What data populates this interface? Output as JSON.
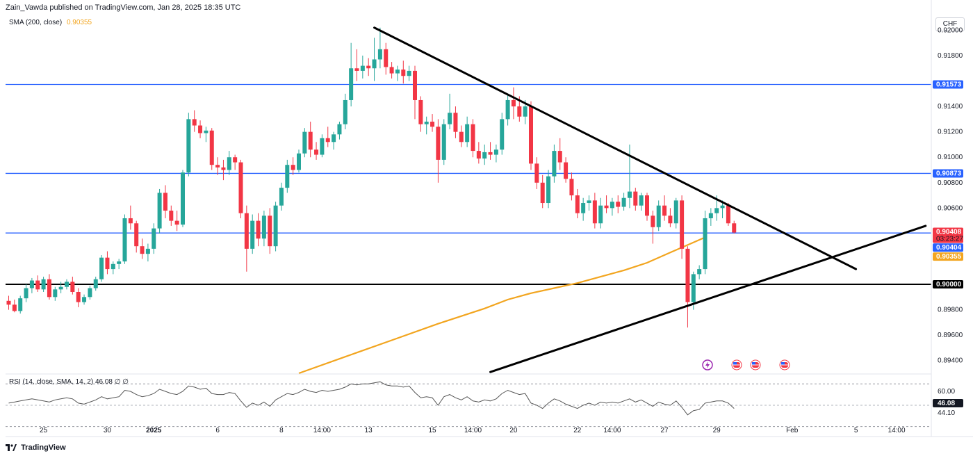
{
  "header": {
    "author": "Zain_Vawda",
    "published": "published on TradingView.com, Jan 28, 2025 18:35 UTC"
  },
  "legend": {
    "sma_label": "SMA (200, close)",
    "sma_value": "0.90355"
  },
  "rsi_legend": {
    "label": "RSI (14, close, SMA, 14, 2)",
    "value": "46.08",
    "extra": "∅  ∅"
  },
  "currency": "CHF",
  "footer": {
    "brand": "TradingView"
  },
  "colors": {
    "bull": "#26a69a",
    "bear": "#f23645",
    "sma": "#f2a51f",
    "hline": "#2962ff",
    "trend": "#000000",
    "rsi": "#555555"
  },
  "chart_data": {
    "type": "candlestick",
    "symbol_currency": "CHF",
    "ylim": [
      0.893,
      0.9215
    ],
    "y_ticks": [
      "0.92000",
      "0.91800",
      "0.91400",
      "0.91200",
      "0.91000",
      "0.90800",
      "0.90600",
      "0.89800",
      "0.89600",
      "0.89400"
    ],
    "x_ticks": [
      {
        "label": "25",
        "idx": 6
      },
      {
        "label": "30",
        "idx": 17
      },
      {
        "label": "2025",
        "idx": 25
      },
      {
        "label": "6",
        "idx": 36
      },
      {
        "label": "8",
        "idx": 47
      },
      {
        "label": "14:00",
        "idx": 54
      },
      {
        "label": "13",
        "idx": 62
      },
      {
        "label": "15",
        "idx": 73
      },
      {
        "label": "14:00",
        "idx": 80
      },
      {
        "label": "20",
        "idx": 87
      },
      {
        "label": "22",
        "idx": 98
      },
      {
        "label": "14:00",
        "idx": 104
      },
      {
        "label": "27",
        "idx": 113
      },
      {
        "label": "29",
        "idx": 122
      },
      {
        "label": "Feb",
        "idx": 135
      },
      {
        "label": "5",
        "idx": 146
      },
      {
        "label": "14:00",
        "idx": 153
      }
    ],
    "price_tags": [
      {
        "label": "0.91573",
        "value": 0.91573,
        "color": "#2962ff"
      },
      {
        "label": "0.90873",
        "value": 0.90873,
        "color": "#2962ff"
      },
      {
        "label": "0.90408",
        "sub": "03:23:27",
        "value": 0.90408,
        "color": "#f23645"
      },
      {
        "label": "0.90404",
        "value": 0.90404,
        "color": "#2962ff"
      },
      {
        "label": "0.90355",
        "value": 0.90355,
        "color": "#f2a51f"
      },
      {
        "label": "0.90000",
        "value": 0.9,
        "color": "#000000"
      }
    ],
    "horizontal_lines": [
      {
        "value": 0.91573,
        "color": "#2962ff"
      },
      {
        "value": 0.90873,
        "color": "#2962ff"
      },
      {
        "value": 0.90404,
        "color": "#2962ff"
      },
      {
        "value": 0.9,
        "color": "#000000"
      }
    ],
    "trendlines": [
      {
        "from": [
          63,
          0.9202
        ],
        "to": [
          146,
          0.9012
        ]
      },
      {
        "from": [
          83,
          0.8931
        ],
        "to": [
          158,
          0.9046
        ]
      }
    ],
    "sma200": [
      [
        50,
        0.893
      ],
      [
        58,
        0.8943
      ],
      [
        66,
        0.8956
      ],
      [
        74,
        0.8969
      ],
      [
        82,
        0.8981
      ],
      [
        86,
        0.8988
      ],
      [
        90,
        0.8993
      ],
      [
        94,
        0.8997
      ],
      [
        98,
        0.9001
      ],
      [
        102,
        0.9006
      ],
      [
        106,
        0.9011
      ],
      [
        110,
        0.9017
      ],
      [
        114,
        0.9025
      ],
      [
        118,
        0.9033
      ],
      [
        120,
        0.9037
      ]
    ],
    "candles": [
      [
        0.8987,
        0.8991,
        0.898,
        0.8984
      ],
      [
        0.8984,
        0.8988,
        0.8978,
        0.8979
      ],
      [
        0.8979,
        0.8991,
        0.8977,
        0.8989
      ],
      [
        0.8989,
        0.9,
        0.8986,
        0.8997
      ],
      [
        0.8997,
        0.9005,
        0.8993,
        0.9003
      ],
      [
        0.9003,
        0.9007,
        0.8994,
        0.8996
      ],
      [
        0.8996,
        0.9006,
        0.8994,
        0.9004
      ],
      [
        0.9004,
        0.9008,
        0.8988,
        0.899
      ],
      [
        0.899,
        0.8998,
        0.8987,
        0.8996
      ],
      [
        0.8996,
        0.9002,
        0.8993,
        0.8998
      ],
      [
        0.8998,
        0.9004,
        0.8996,
        0.9002
      ],
      [
        0.9002,
        0.9006,
        0.8992,
        0.8994
      ],
      [
        0.8994,
        0.8997,
        0.8982,
        0.8986
      ],
      [
        0.8986,
        0.8992,
        0.8984,
        0.899
      ],
      [
        0.899,
        0.8999,
        0.8988,
        0.8997
      ],
      [
        0.8997,
        0.9006,
        0.8995,
        0.9004
      ],
      [
        0.9004,
        0.9023,
        0.9002,
        0.9021
      ],
      [
        0.9021,
        0.9026,
        0.9008,
        0.9012
      ],
      [
        0.9012,
        0.9018,
        0.9008,
        0.9016
      ],
      [
        0.9016,
        0.902,
        0.9012,
        0.9018
      ],
      [
        0.9018,
        0.9055,
        0.9016,
        0.9052
      ],
      [
        0.9052,
        0.9062,
        0.9043,
        0.9048
      ],
      [
        0.9048,
        0.905,
        0.9025,
        0.903
      ],
      [
        0.903,
        0.9036,
        0.902,
        0.9024
      ],
      [
        0.9024,
        0.9032,
        0.9018,
        0.9028
      ],
      [
        0.9028,
        0.9048,
        0.9024,
        0.9044
      ],
      [
        0.9044,
        0.9075,
        0.904,
        0.9072
      ],
      [
        0.9072,
        0.9078,
        0.9052,
        0.9058
      ],
      [
        0.9058,
        0.9062,
        0.9046,
        0.905
      ],
      [
        0.905,
        0.9058,
        0.9042,
        0.9047
      ],
      [
        0.9047,
        0.909,
        0.9045,
        0.9088
      ],
      [
        0.9088,
        0.9135,
        0.9085,
        0.913
      ],
      [
        0.913,
        0.9137,
        0.912,
        0.9125
      ],
      [
        0.9125,
        0.9129,
        0.9115,
        0.9119
      ],
      [
        0.9119,
        0.9124,
        0.9112,
        0.9121
      ],
      [
        0.9121,
        0.9123,
        0.909,
        0.9094
      ],
      [
        0.9094,
        0.91,
        0.9086,
        0.9092
      ],
      [
        0.9092,
        0.9098,
        0.9082,
        0.909
      ],
      [
        0.909,
        0.9105,
        0.9086,
        0.91
      ],
      [
        0.91,
        0.9102,
        0.909,
        0.9096
      ],
      [
        0.9096,
        0.9098,
        0.9052,
        0.9056
      ],
      [
        0.9056,
        0.9062,
        0.901,
        0.9028
      ],
      [
        0.9028,
        0.9055,
        0.9024,
        0.905
      ],
      [
        0.905,
        0.9056,
        0.903,
        0.9036
      ],
      [
        0.9036,
        0.9058,
        0.903,
        0.9054
      ],
      [
        0.9054,
        0.906,
        0.9024,
        0.903
      ],
      [
        0.903,
        0.9065,
        0.9026,
        0.9062
      ],
      [
        0.9062,
        0.908,
        0.9058,
        0.9076
      ],
      [
        0.9076,
        0.9098,
        0.9072,
        0.9094
      ],
      [
        0.9094,
        0.91,
        0.9086,
        0.909
      ],
      [
        0.909,
        0.9106,
        0.9088,
        0.9103
      ],
      [
        0.9103,
        0.9123,
        0.91,
        0.912
      ],
      [
        0.912,
        0.9128,
        0.91,
        0.9106
      ],
      [
        0.9106,
        0.9112,
        0.9098,
        0.9102
      ],
      [
        0.9102,
        0.9118,
        0.91,
        0.9115
      ],
      [
        0.9115,
        0.9124,
        0.9108,
        0.9112
      ],
      [
        0.9112,
        0.912,
        0.9106,
        0.9118
      ],
      [
        0.9118,
        0.9128,
        0.9114,
        0.9126
      ],
      [
        0.9126,
        0.915,
        0.9122,
        0.9145
      ],
      [
        0.9145,
        0.919,
        0.914,
        0.917
      ],
      [
        0.917,
        0.9185,
        0.916,
        0.9168
      ],
      [
        0.9168,
        0.918,
        0.9162,
        0.9172
      ],
      [
        0.9172,
        0.9178,
        0.9164,
        0.917
      ],
      [
        0.917,
        0.9194,
        0.916,
        0.9177
      ],
      [
        0.9177,
        0.9202,
        0.917,
        0.9185
      ],
      [
        0.9185,
        0.919,
        0.9165,
        0.9171
      ],
      [
        0.9171,
        0.9175,
        0.9162,
        0.9166
      ],
      [
        0.9166,
        0.9172,
        0.916,
        0.9169
      ],
      [
        0.9169,
        0.9176,
        0.9158,
        0.9164
      ],
      [
        0.9164,
        0.9172,
        0.916,
        0.9168
      ],
      [
        0.9168,
        0.9172,
        0.913,
        0.9145
      ],
      [
        0.9145,
        0.9148,
        0.912,
        0.9126
      ],
      [
        0.9126,
        0.9132,
        0.9118,
        0.9128
      ],
      [
        0.9128,
        0.9134,
        0.912,
        0.9124
      ],
      [
        0.9124,
        0.913,
        0.908,
        0.9098
      ],
      [
        0.9098,
        0.913,
        0.9094,
        0.9126
      ],
      [
        0.9126,
        0.915,
        0.9122,
        0.9135
      ],
      [
        0.9135,
        0.914,
        0.9115,
        0.912
      ],
      [
        0.912,
        0.9125,
        0.9108,
        0.9112
      ],
      [
        0.9112,
        0.9132,
        0.9108,
        0.9126
      ],
      [
        0.9126,
        0.913,
        0.91,
        0.9105
      ],
      [
        0.9105,
        0.9112,
        0.9095,
        0.9099
      ],
      [
        0.9099,
        0.911,
        0.9094,
        0.9104
      ],
      [
        0.9104,
        0.9112,
        0.9098,
        0.9102
      ],
      [
        0.9102,
        0.911,
        0.9096,
        0.9106
      ],
      [
        0.9106,
        0.9135,
        0.9102,
        0.913
      ],
      [
        0.913,
        0.915,
        0.9125,
        0.9145
      ],
      [
        0.9145,
        0.9155,
        0.913,
        0.914
      ],
      [
        0.914,
        0.9148,
        0.9128,
        0.9132
      ],
      [
        0.9132,
        0.9145,
        0.9126,
        0.914
      ],
      [
        0.914,
        0.9144,
        0.909,
        0.9095
      ],
      [
        0.9095,
        0.91,
        0.9075,
        0.908
      ],
      [
        0.908,
        0.9086,
        0.906,
        0.9064
      ],
      [
        0.9064,
        0.909,
        0.906,
        0.9085
      ],
      [
        0.9085,
        0.911,
        0.908,
        0.9105
      ],
      [
        0.9105,
        0.9115,
        0.909,
        0.9096
      ],
      [
        0.9096,
        0.91,
        0.908,
        0.9083
      ],
      [
        0.9083,
        0.9088,
        0.9066,
        0.907
      ],
      [
        0.907,
        0.9075,
        0.9052,
        0.9056
      ],
      [
        0.9056,
        0.9068,
        0.905,
        0.9064
      ],
      [
        0.9064,
        0.907,
        0.9058,
        0.9066
      ],
      [
        0.9066,
        0.9072,
        0.9044,
        0.9048
      ],
      [
        0.9048,
        0.9068,
        0.9044,
        0.9062
      ],
      [
        0.9062,
        0.907,
        0.9056,
        0.906
      ],
      [
        0.906,
        0.9068,
        0.9054,
        0.9065
      ],
      [
        0.9065,
        0.907,
        0.9056,
        0.9061
      ],
      [
        0.9061,
        0.9072,
        0.9058,
        0.9068
      ],
      [
        0.9068,
        0.911,
        0.906,
        0.9073
      ],
      [
        0.9073,
        0.9076,
        0.9058,
        0.9062
      ],
      [
        0.9062,
        0.9072,
        0.9058,
        0.907
      ],
      [
        0.907,
        0.9072,
        0.905,
        0.9054
      ],
      [
        0.9054,
        0.9058,
        0.9032,
        0.9045
      ],
      [
        0.9045,
        0.9066,
        0.9042,
        0.9062
      ],
      [
        0.9062,
        0.907,
        0.905,
        0.9054
      ],
      [
        0.9054,
        0.906,
        0.9045,
        0.9048
      ],
      [
        0.9048,
        0.9068,
        0.9044,
        0.9066
      ],
      [
        0.9066,
        0.907,
        0.902,
        0.9028
      ],
      [
        0.9028,
        0.903,
        0.8966,
        0.8986
      ],
      [
        0.8986,
        0.901,
        0.898,
        0.9008
      ],
      [
        0.9008,
        0.9015,
        0.9004,
        0.9012
      ],
      [
        0.9012,
        0.9058,
        0.9008,
        0.9052
      ],
      [
        0.9052,
        0.906,
        0.9046,
        0.9056
      ],
      [
        0.9056,
        0.907,
        0.905,
        0.906
      ],
      [
        0.906,
        0.9066,
        0.9052,
        0.9062
      ],
      [
        0.9062,
        0.9064,
        0.9046,
        0.9048
      ],
      [
        0.9048,
        0.905,
        0.904,
        0.90408
      ]
    ],
    "rsi": {
      "label": "RSI (14, close, SMA, 14, 2)",
      "value": 46.08,
      "ylim": [
        35,
        78
      ],
      "levels": [
        60.0,
        44.1
      ],
      "tick_labels": [
        "60.00",
        "44.10"
      ],
      "series": [
        52,
        53,
        54,
        55,
        56,
        55,
        54,
        53,
        55,
        56,
        57,
        56,
        52,
        51,
        53,
        55,
        58,
        56,
        57,
        58,
        64,
        63,
        60,
        58,
        59,
        61,
        65,
        63,
        61,
        60,
        63,
        68,
        67,
        65,
        66,
        61,
        60,
        60,
        62,
        61,
        54,
        48,
        52,
        50,
        53,
        49,
        55,
        58,
        61,
        60,
        62,
        65,
        63,
        62,
        64,
        63,
        64,
        65,
        67,
        70,
        69,
        70,
        70,
        71,
        72,
        69,
        68,
        68,
        67,
        68,
        62,
        57,
        58,
        57,
        50,
        58,
        60,
        57,
        55,
        58,
        54,
        53,
        55,
        54,
        56,
        61,
        64,
        62,
        60,
        61,
        52,
        50,
        47,
        52,
        56,
        54,
        51,
        49,
        47,
        50,
        52,
        50,
        53,
        52,
        53,
        52,
        54,
        56,
        53,
        55,
        52,
        49,
        53,
        51,
        50,
        54,
        48,
        41,
        45,
        46,
        52,
        53,
        54,
        54,
        52,
        47
      ]
    }
  }
}
